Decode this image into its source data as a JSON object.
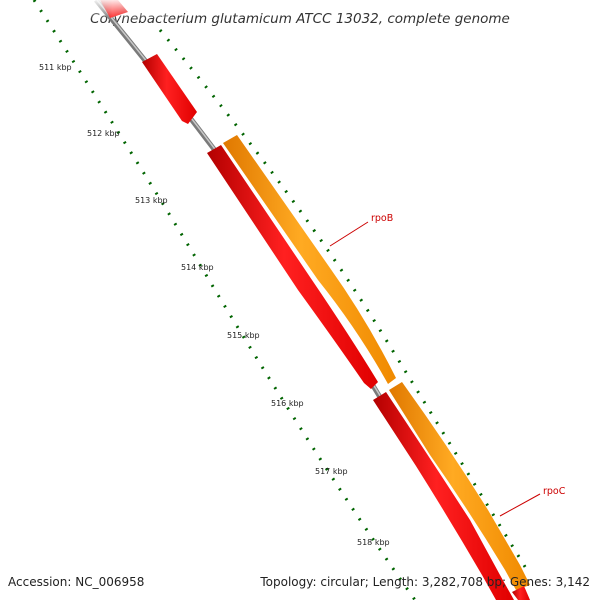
{
  "title": "Corynebacterium glutamicum ATCC 13032, complete genome",
  "ruler": {
    "labels": [
      "511 kbp",
      "512 kbp",
      "513 kbp",
      "514 kbp",
      "515 kbp",
      "516 kbp",
      "517 kbp",
      "518 kbp"
    ]
  },
  "genes": [
    {
      "name": "rpoB",
      "color": "#ff0000",
      "strand_color": "#ff9900"
    },
    {
      "name": "rpoC",
      "color": "#ff0000",
      "strand_color": "#ff9900"
    }
  ],
  "colors": {
    "backbone": "#808080",
    "cds": "#ff0000",
    "gene": "#ff9900",
    "tick": "#006400",
    "label_line": "#cc0000"
  },
  "footer": {
    "accession": "Accession: NC_006958",
    "summary": "Topology: circular; Length: 3,282,708 bp; Genes: 3,142"
  }
}
